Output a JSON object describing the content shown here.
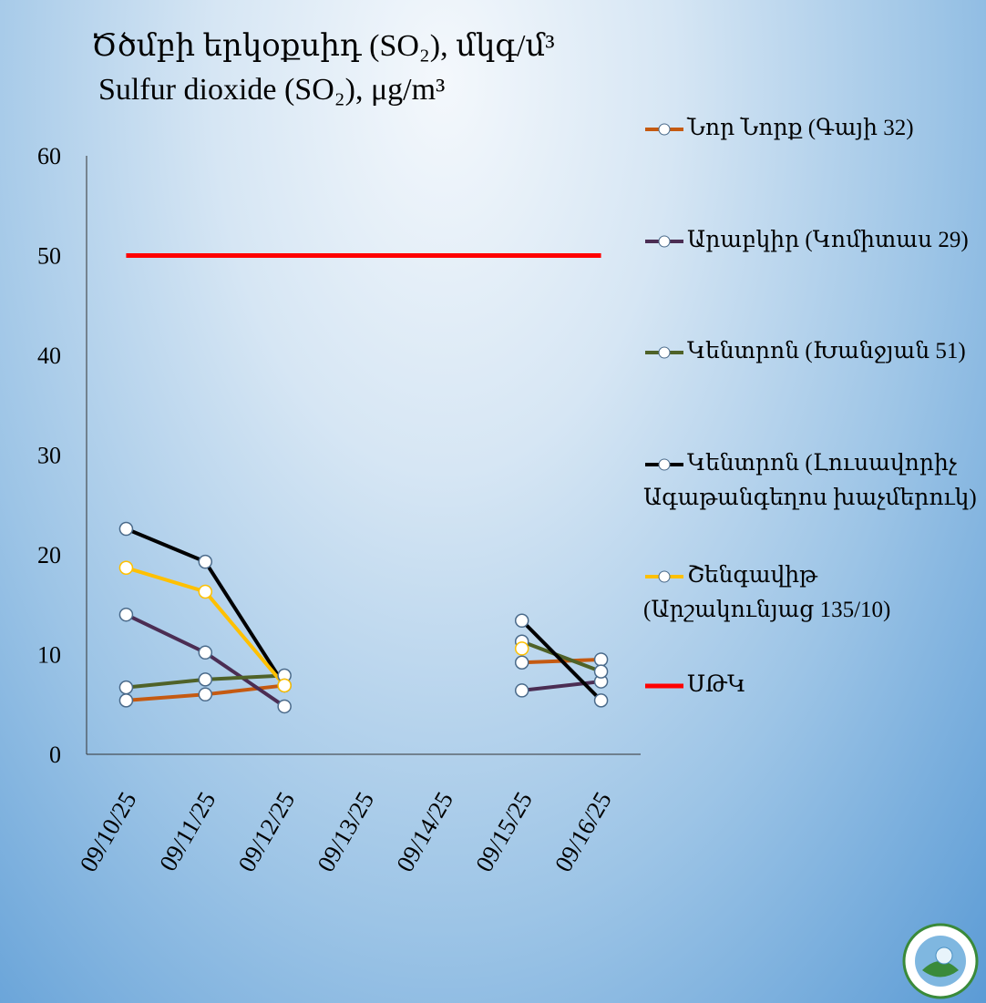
{
  "chart_data": {
    "type": "line",
    "title": "Ծծմբի երկօքսիդ (SO₂), մկգ/մ³",
    "subtitle": "Sulfur dioxide (SO₂), μg/m³",
    "categories": [
      "09/10/25",
      "09/11/25",
      "09/12/25",
      "09/13/25",
      "09/14/25",
      "09/15/25",
      "09/16/25"
    ],
    "ylim": [
      0,
      60
    ],
    "yticks": [
      0,
      10,
      20,
      30,
      40,
      50,
      60
    ],
    "series": [
      {
        "name": "Նոր Նորք (Գայի 32)",
        "color": "#c55a11",
        "values": [
          5.4,
          6.0,
          6.9,
          null,
          null,
          9.2,
          9.5
        ]
      },
      {
        "name": "Արաբկիր (Կոմիտաս 29)",
        "color": "#4b2d53",
        "values": [
          14.0,
          10.2,
          4.8,
          null,
          null,
          6.4,
          7.3
        ]
      },
      {
        "name": "Կենտրոն (Խանջյան 51)",
        "color": "#4f6228",
        "values": [
          6.7,
          7.5,
          7.9,
          null,
          null,
          11.3,
          8.3
        ]
      },
      {
        "name": "Կենտրոն (Լուսավորիչ Ագաթանգեղոս խաչմերուկ)",
        "color": "#000000",
        "values": [
          22.6,
          19.3,
          6.9,
          null,
          null,
          13.4,
          5.4
        ]
      },
      {
        "name": "Շենգավիթ (Արշակունյաց 135/10)",
        "color": "#ffc000",
        "values": [
          18.7,
          16.3,
          6.9,
          null,
          null,
          10.6,
          null
        ]
      },
      {
        "name": "ՍԹԿ",
        "color": "#ff0000",
        "values": [
          50,
          50,
          50,
          50,
          50,
          50,
          50
        ]
      }
    ]
  }
}
